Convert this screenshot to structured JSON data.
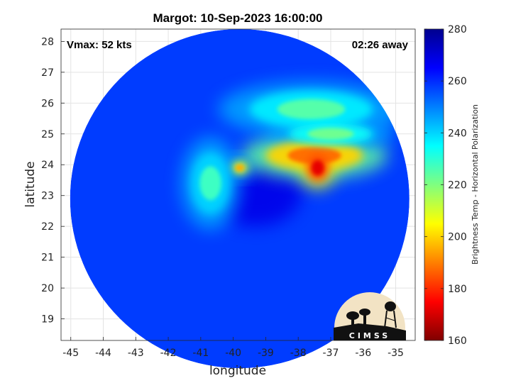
{
  "chart_data": {
    "type": "heatmap",
    "title": "Margot: 10-Sep-2023 16:00:00",
    "annotations": {
      "vmax": "Vmax: 52 kts",
      "time_away": "02:26 away"
    },
    "xlabel": "longitude",
    "ylabel": "latitude",
    "xlim": [
      -45.3,
      -34.4
    ],
    "ylim": [
      18.3,
      28.4
    ],
    "xticks": [
      -45,
      -44,
      -43,
      -42,
      -41,
      -40,
      -39,
      -38,
      -37,
      -36,
      -35
    ],
    "yticks": [
      19,
      20,
      21,
      22,
      23,
      24,
      25,
      26,
      27,
      28
    ],
    "grid": true,
    "colorbar": {
      "label": "Brightness Temp - Horizontal Polarization",
      "range": [
        160,
        280
      ],
      "ticks": [
        160,
        180,
        200,
        220,
        240,
        260,
        280
      ],
      "colormap": "jet"
    },
    "swath": {
      "center_lon": -39.8,
      "center_lat": 22.9,
      "radius_deg": 5.5
    },
    "background_tb": 258,
    "storm_center": {
      "lon": -39.3,
      "lat": 23.1,
      "tb": 268
    },
    "features": [
      {
        "label": "eastern deep convection",
        "lon": -37.5,
        "lat": 24.3,
        "tb": 188
      },
      {
        "label": "coldest core",
        "lon": -37.4,
        "lat": 23.9,
        "tb": 172
      },
      {
        "label": "rainband spot",
        "lon": -39.8,
        "lat": 23.9,
        "tb": 195
      },
      {
        "label": "northern rainband",
        "lon": -37.6,
        "lat": 25.8,
        "tb": 225
      },
      {
        "label": "north-east band",
        "lon": -37.0,
        "lat": 25.0,
        "tb": 222
      },
      {
        "label": "western rainband",
        "lon": -40.7,
        "lat": 23.4,
        "tb": 228
      }
    ],
    "logo": "CIMSS"
  }
}
